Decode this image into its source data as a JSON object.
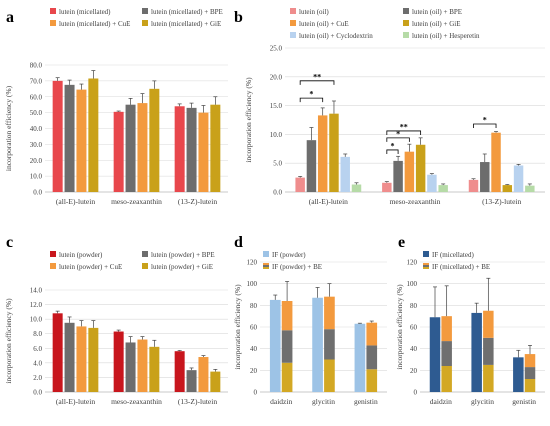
{
  "chart_data": [
    {
      "panel": "a",
      "type": "bar",
      "categories": [
        "(all-E)-lutein",
        "meso-zeaxanthin",
        "(13-Z)-lutein"
      ],
      "ylabel": "incorporation efficiency (%)",
      "ylim": [
        0,
        80
      ],
      "yticks": [
        "0.0",
        "10.0",
        "20.0",
        "30.0",
        "40.0",
        "50.0",
        "60.0",
        "70.0",
        "80.0"
      ],
      "yticks_values": [
        0,
        10,
        20,
        30,
        40,
        50,
        60,
        70,
        80
      ],
      "legend_columns": 2,
      "series": [
        {
          "name": "lutein (micellated)",
          "color": "#e8474c",
          "values": [
            70,
            50.5,
            54
          ],
          "errors": [
            2,
            0.5,
            1.5
          ]
        },
        {
          "name": "lutein (micellated) + BPE",
          "color": "#6d6d6d",
          "values": [
            67.5,
            55,
            53
          ],
          "errors": [
            3,
            4,
            3
          ]
        },
        {
          "name": "lutein (micellated) + CuE",
          "color": "#f39a3e",
          "values": [
            64.5,
            56,
            50
          ],
          "errors": [
            3.5,
            6,
            4.5
          ]
        },
        {
          "name": "lutein (micellated) + GiE",
          "color": "#c9a11a",
          "values": [
            71.5,
            65,
            55
          ],
          "errors": [
            5,
            5,
            5
          ]
        }
      ]
    },
    {
      "panel": "b",
      "type": "bar",
      "categories": [
        "(all-E)-lutein",
        "meso-zeaxanthin",
        "(13-Z)-lutein"
      ],
      "ylabel": "incorporation efficiency (%)",
      "ylim": [
        0,
        25
      ],
      "yticks": [
        "0.0",
        "5.0",
        "10.0",
        "15.0",
        "20.0",
        "25.0"
      ],
      "yticks_values": [
        0,
        5,
        10,
        15,
        20,
        25
      ],
      "legend_columns": 2,
      "series": [
        {
          "name": "lutein (oil)",
          "color": "#ef8d8d",
          "values": [
            2.5,
            1.6,
            2.1
          ],
          "errors": [
            0.2,
            0.2,
            0.2
          ]
        },
        {
          "name": "lutein (oil) + BPE",
          "color": "#6d6d6d",
          "values": [
            9,
            5.4,
            5.2
          ],
          "errors": [
            2.2,
            0.8,
            1.4
          ]
        },
        {
          "name": "lutein (oil) + CuE",
          "color": "#f39a3e",
          "values": [
            13.3,
            7,
            10.3
          ],
          "errors": [
            1.3,
            1.3,
            0.2
          ]
        },
        {
          "name": "lutein (oil) + GiE",
          "color": "#c9a11a",
          "values": [
            13.6,
            8.2,
            1.2
          ],
          "errors": [
            2.2,
            1.2,
            0.1
          ]
        },
        {
          "name": "lutein (oil) + Cyclodextrin",
          "color": "#b8d2ef",
          "values": [
            6.1,
            3,
            4.6
          ],
          "errors": [
            0.5,
            0.2,
            0.2
          ]
        },
        {
          "name": "lutein (oil) + Hesperetin",
          "color": "#b6dba7",
          "values": [
            1.3,
            1.2,
            1.1
          ],
          "errors": [
            0.3,
            0.2,
            0.3
          ]
        }
      ],
      "annotations": [
        {
          "label": "**",
          "category": 0,
          "from_series": 0,
          "to_series": 3,
          "level": 19.3
        },
        {
          "label": "*",
          "category": 0,
          "from_series": 0,
          "to_series": 2,
          "level": 16.3
        },
        {
          "label": "**",
          "category": 1,
          "from_series": 0,
          "to_series": 3,
          "level": 10.6
        },
        {
          "label": "*",
          "category": 1,
          "from_series": 0,
          "to_series": 2,
          "level": 9.4
        },
        {
          "label": "*",
          "category": 1,
          "from_series": 0,
          "to_series": 1,
          "level": 7.3
        },
        {
          "label": "*",
          "category": 2,
          "from_series": 0,
          "to_series": 2,
          "level": 11.8
        }
      ]
    },
    {
      "panel": "c",
      "type": "bar",
      "categories": [
        "(all-E)-lutein",
        "meso-zeaxanthin",
        "(13-Z)-lutein"
      ],
      "ylabel": "incorporation efficiency (%)",
      "ylim": [
        0,
        14
      ],
      "yticks": [
        "0.0",
        "2.0",
        "4.0",
        "6.0",
        "8.0",
        "10.0",
        "12.0",
        "14.0"
      ],
      "yticks_values": [
        0,
        2,
        4,
        6,
        8,
        10,
        12,
        14
      ],
      "legend_columns": 2,
      "series": [
        {
          "name": "lutein (powder)",
          "color": "#c8161d",
          "values": [
            10.8,
            8.3,
            5.6
          ],
          "errors": [
            0.3,
            0.2,
            0.1
          ]
        },
        {
          "name": "lutein (powder) + BPE",
          "color": "#6d6d6d",
          "values": [
            9.5,
            6.8,
            3
          ],
          "errors": [
            0.8,
            0.8,
            0.3
          ]
        },
        {
          "name": "lutein (powder) + CuE",
          "color": "#f39a3e",
          "values": [
            9,
            7.2,
            4.8
          ],
          "errors": [
            0.8,
            0.4,
            0.2
          ]
        },
        {
          "name": "lutein (powder) + GiE",
          "color": "#c9a11a",
          "values": [
            8.8,
            6.2,
            2.8
          ],
          "errors": [
            1,
            0.9,
            0.3
          ]
        }
      ]
    },
    {
      "panel": "d",
      "type": "bar",
      "categories": [
        "daidzin",
        "glycitin",
        "genistin"
      ],
      "ylabel": "incorporation efficiency (%)",
      "ylim": [
        0,
        120
      ],
      "yticks": [
        "0",
        "20",
        "40",
        "60",
        "80",
        "100",
        "120"
      ],
      "yticks_values": [
        0,
        20,
        40,
        60,
        80,
        100,
        120
      ],
      "legend_columns": 1,
      "legend_colors": [
        "#9dc3e6",
        "gradient-orange-gray-yellow"
      ],
      "series": [
        {
          "name": "IF (powder)",
          "color": "#9dc3e6",
          "values": [
            85,
            87,
            63
          ],
          "errors": [
            4.5,
            9.5,
            0.5
          ]
        },
        {
          "name": "IF (powder) + BE",
          "stacked": true,
          "values": [
            84,
            88,
            64
          ],
          "errors": [
            18,
            12,
            1.5
          ],
          "segments": [
            {
              "color": "#d3a824",
              "values": [
                27,
                30,
                21
              ]
            },
            {
              "color": "#6f6f6f",
              "values": [
                30,
                28,
                22
              ]
            },
            {
              "color": "#f39a3e",
              "values": [
                27,
                30,
                21
              ]
            }
          ]
        }
      ]
    },
    {
      "panel": "e",
      "type": "bar",
      "categories": [
        "daidzin",
        "glycitin",
        "genistin"
      ],
      "ylabel": "incorporation efficiency (%)",
      "ylim": [
        0,
        120
      ],
      "yticks": [
        "0",
        "20",
        "40",
        "60",
        "80",
        "100",
        "120"
      ],
      "yticks_values": [
        0,
        20,
        40,
        60,
        80,
        100,
        120
      ],
      "legend_columns": 1,
      "legend_colors": [
        "#2e5b91",
        "gradient-orange-gray-yellow"
      ],
      "series": [
        {
          "name": "IF (micellated)",
          "color": "#2e5b91",
          "values": [
            69,
            73,
            32
          ],
          "errors": [
            28,
            9,
            6.5
          ]
        },
        {
          "name": "IF (micellated) + BE",
          "stacked": true,
          "values": [
            70,
            75,
            35
          ],
          "errors": [
            28,
            30,
            8
          ],
          "segments": [
            {
              "color": "#d3a824",
              "values": [
                24,
                25,
                12
              ]
            },
            {
              "color": "#6f6f6f",
              "values": [
                23,
                25,
                11
              ]
            },
            {
              "color": "#f39a3e",
              "values": [
                23,
                25,
                12
              ]
            }
          ]
        }
      ]
    }
  ],
  "panel_labels": [
    "a",
    "b",
    "c",
    "d",
    "e"
  ]
}
